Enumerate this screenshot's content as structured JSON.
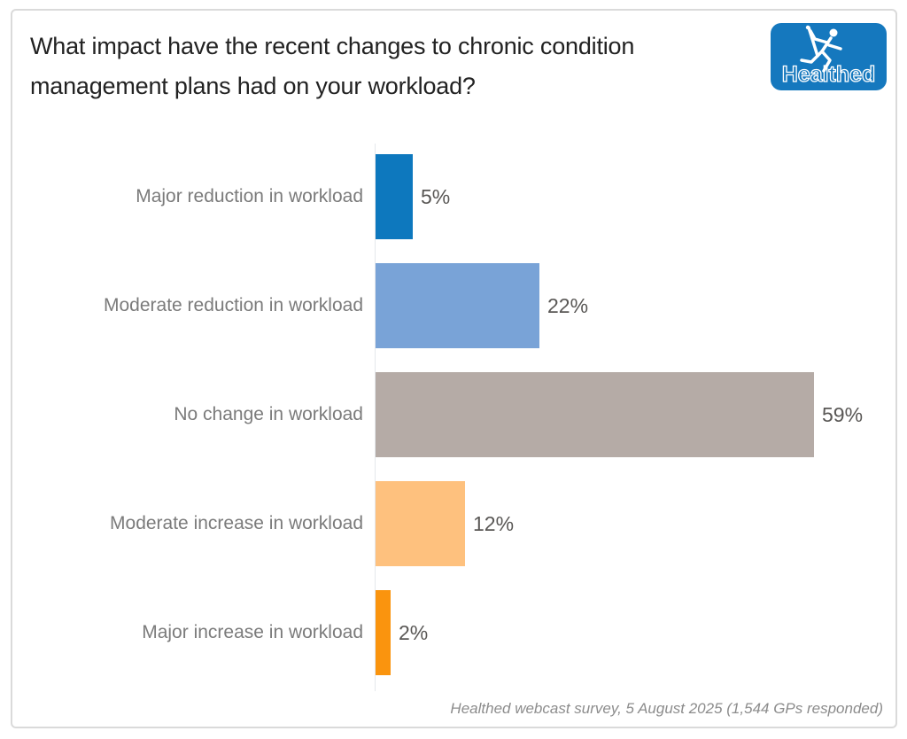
{
  "window": {
    "background": "#ffffff",
    "card_border_color": "#dadada"
  },
  "header": {
    "title": "What impact have the recent changes to chronic condition management plans had on your workload?",
    "logo": {
      "text": "Healthed",
      "background": "#1578be",
      "figure_icon": "hermes-runner-icon"
    }
  },
  "chart_data": {
    "type": "bar",
    "orientation": "horizontal",
    "title": "What impact have the recent changes to chronic condition management plans had on your workload?",
    "categories": [
      "Major reduction in workload",
      "Moderate reduction in workload",
      "No change in workload",
      "Moderate increase in workload",
      "Major increase in workload"
    ],
    "values": [
      5,
      22,
      59,
      12,
      2
    ],
    "value_labels": [
      "5%",
      "22%",
      "59%",
      "12%",
      "2%"
    ],
    "colors": [
      "#0d78be",
      "#79a3d7",
      "#b5aba6",
      "#fec17e",
      "#fa940e"
    ],
    "xlim": [
      0,
      59
    ],
    "grid": false,
    "axis_visible": false,
    "legend": "none",
    "value_label_position": "outside-end",
    "category_label_color": "#7b7b7b",
    "value_label_color": "#595755",
    "source_note": "Healthed webcast survey, 5 August 2025 (1,544 GPs responded)"
  },
  "footer": {
    "note": "Healthed webcast survey, 5 August 2025 (1,544 GPs responded)"
  }
}
